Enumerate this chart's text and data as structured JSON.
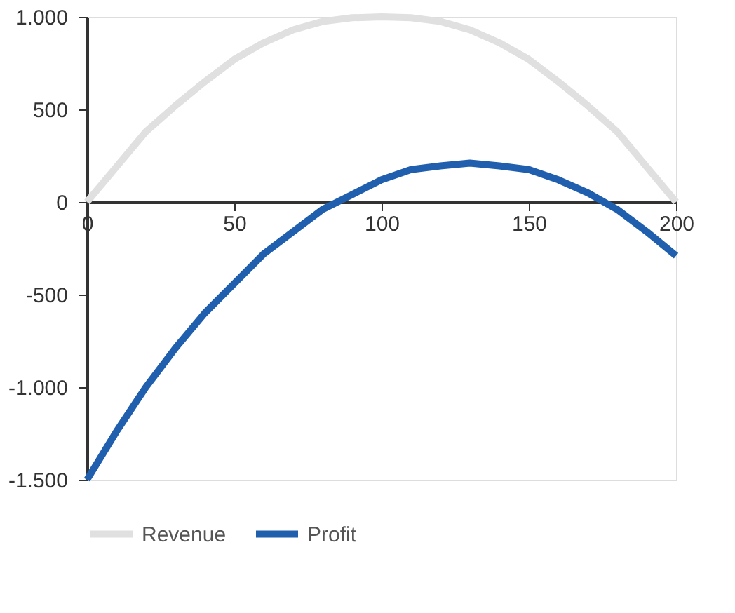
{
  "chart_data": {
    "type": "line",
    "x": [
      0,
      10,
      20,
      30,
      40,
      50,
      60,
      70,
      80,
      90,
      100,
      110,
      120,
      130,
      140,
      150,
      160,
      170,
      180,
      190,
      200
    ],
    "series": [
      {
        "name": "Revenue",
        "color": "#e0e0e0",
        "values": [
          0,
          190,
          380,
          520,
          650,
          770,
          860,
          930,
          975,
          995,
          1000,
          995,
          975,
          930,
          860,
          770,
          650,
          520,
          380,
          190,
          0
        ]
      },
      {
        "name": "Profit",
        "color": "#1f5fad",
        "values": [
          -1500,
          -1240,
          -1000,
          -790,
          -600,
          -440,
          -280,
          -160,
          -40,
          40,
          120,
          175,
          195,
          210,
          195,
          175,
          120,
          50,
          -40,
          -160,
          -290
        ]
      }
    ],
    "xlim": [
      0,
      200
    ],
    "xticks": [
      0,
      50,
      100,
      150,
      200
    ],
    "ylim": [
      -1500,
      1000
    ],
    "yticks": [
      {
        "value": -1500,
        "label": "-1.500"
      },
      {
        "value": -1000,
        "label": "-1.000"
      },
      {
        "value": -500,
        "label": "-500"
      },
      {
        "value": 0,
        "label": "0"
      },
      {
        "value": 500,
        "label": "500"
      },
      {
        "value": 1000,
        "label": "1.000"
      }
    ],
    "grid": false,
    "legend": "bottom",
    "marker": "none",
    "line_style": "solid"
  }
}
